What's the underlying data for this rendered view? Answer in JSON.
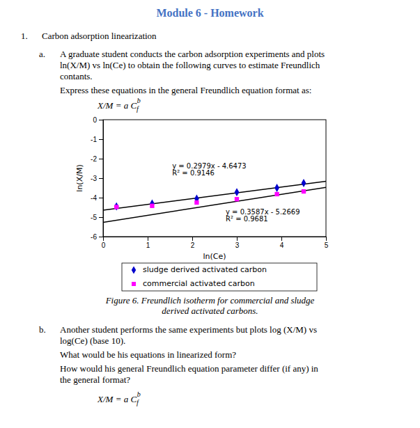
{
  "header": {
    "text": "Module 6 - Homework",
    "color": "#4472C4"
  },
  "intro": {
    "label": "1.",
    "text": "Carbon adsorption linearization"
  },
  "part_a": {
    "label": "a.",
    "lines": [
      "A graduate student conducts the carbon adsorption experiments and plots",
      "ln(X/M) vs ln(Ce) to obtain the following curves to estimate Freundlich",
      "contants.",
      "Express these equations in the general Freundlich equation format as:"
    ]
  },
  "formula": {
    "main": "X/M = a C",
    "sub": "f",
    "sup": "b"
  },
  "chart_data": {
    "type": "scatter",
    "xlabel": "ln(Ce)",
    "ylabel": "ln(X/M)",
    "xlim": [
      0,
      5
    ],
    "ylim": [
      -6,
      0
    ],
    "xticks": [
      0,
      1,
      2,
      3,
      4,
      5
    ],
    "yticks": [
      0,
      -1,
      -2,
      -3,
      -4,
      -5,
      -6
    ],
    "legend": "bottom",
    "series": [
      {
        "name": "sludge derived activated carbon",
        "type": "scatter",
        "color": "#0000CD",
        "marker": "diamond",
        "x": [
          0.3,
          1.1,
          2.1,
          3.0,
          3.9,
          4.5
        ],
        "values": [
          -4.45,
          -4.3,
          -4.05,
          -3.72,
          -3.5,
          -3.25
        ]
      },
      {
        "name": "commercial activated carbon",
        "type": "scatter",
        "color": "#FF00FF",
        "marker": "square",
        "x": [
          0.3,
          1.1,
          2.1,
          3.0,
          3.9,
          4.5
        ],
        "values": [
          -4.48,
          -4.42,
          -4.25,
          -4.08,
          -3.82,
          -3.68
        ]
      },
      {
        "type": "line",
        "color": "#000000",
        "x": [
          0,
          5
        ],
        "values": [
          -4.6473,
          -3.1578
        ]
      },
      {
        "type": "line",
        "color": "#000000",
        "x": [
          0,
          5
        ],
        "values": [
          -5.2669,
          -3.4734
        ]
      }
    ],
    "annotations": [
      {
        "text": "y = 0.2979x - 4.6473",
        "x": 1.55,
        "y": -2.5
      },
      {
        "text": "R² = 0.9146",
        "x": 1.55,
        "y": -2.85
      },
      {
        "text": "y = 0.3587x - 5.2669",
        "x": 2.75,
        "y": -4.85
      },
      {
        "text": "R² = 0.9681",
        "x": 2.75,
        "y": -5.2
      }
    ],
    "caption": [
      "Figure 6. Freundlich isotherm for commercial and sludge",
      "derived activated carbons."
    ]
  },
  "part_b": {
    "label": "b.",
    "lines": [
      "Another student performs the same experiments but plots log (X/M) vs",
      "log(Ce) (base 10).",
      "What would be his equations in linearized form?",
      "How would his general Freundlich equation parameter differ (if any) in",
      "the general format?"
    ]
  }
}
